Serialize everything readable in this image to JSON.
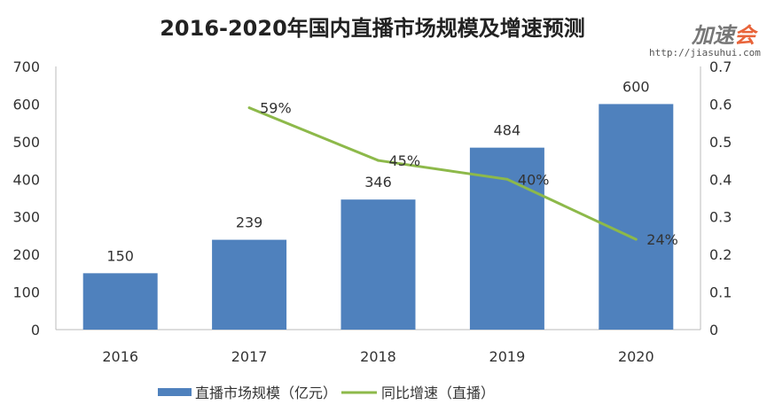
{
  "chart_data": {
    "type": "bar+line",
    "title": "2016-2020年国内直播市场规模及增速预测",
    "categories": [
      "2016",
      "2017",
      "2018",
      "2019",
      "2020"
    ],
    "series": [
      {
        "name": "直播市场规模（亿元）",
        "type": "bar",
        "axis": "left",
        "values": [
          150,
          239,
          346,
          484,
          600
        ],
        "labels": [
          "150",
          "239",
          "346",
          "484",
          "600"
        ],
        "color": "#4f81bd"
      },
      {
        "name": "同比增速（直播）",
        "type": "line",
        "axis": "right",
        "values": [
          null,
          0.59,
          0.45,
          0.4,
          0.24
        ],
        "labels": [
          "",
          "59%",
          "45%",
          "40%",
          "24%"
        ],
        "color": "#8db94a"
      }
    ],
    "left_axis": {
      "ylim": [
        0,
        700
      ],
      "ticks": [
        "0",
        "100",
        "200",
        "300",
        "400",
        "500",
        "600",
        "700"
      ]
    },
    "right_axis": {
      "ylim": [
        0,
        0.7
      ],
      "ticks": [
        "0",
        "0.1",
        "0.2",
        "0.3",
        "0.4",
        "0.5",
        "0.6",
        "0.7"
      ]
    },
    "grid": false,
    "legend_position": "bottom"
  },
  "watermark": {
    "logo_text": "加速会",
    "url": "http://jiasuhui.com"
  }
}
